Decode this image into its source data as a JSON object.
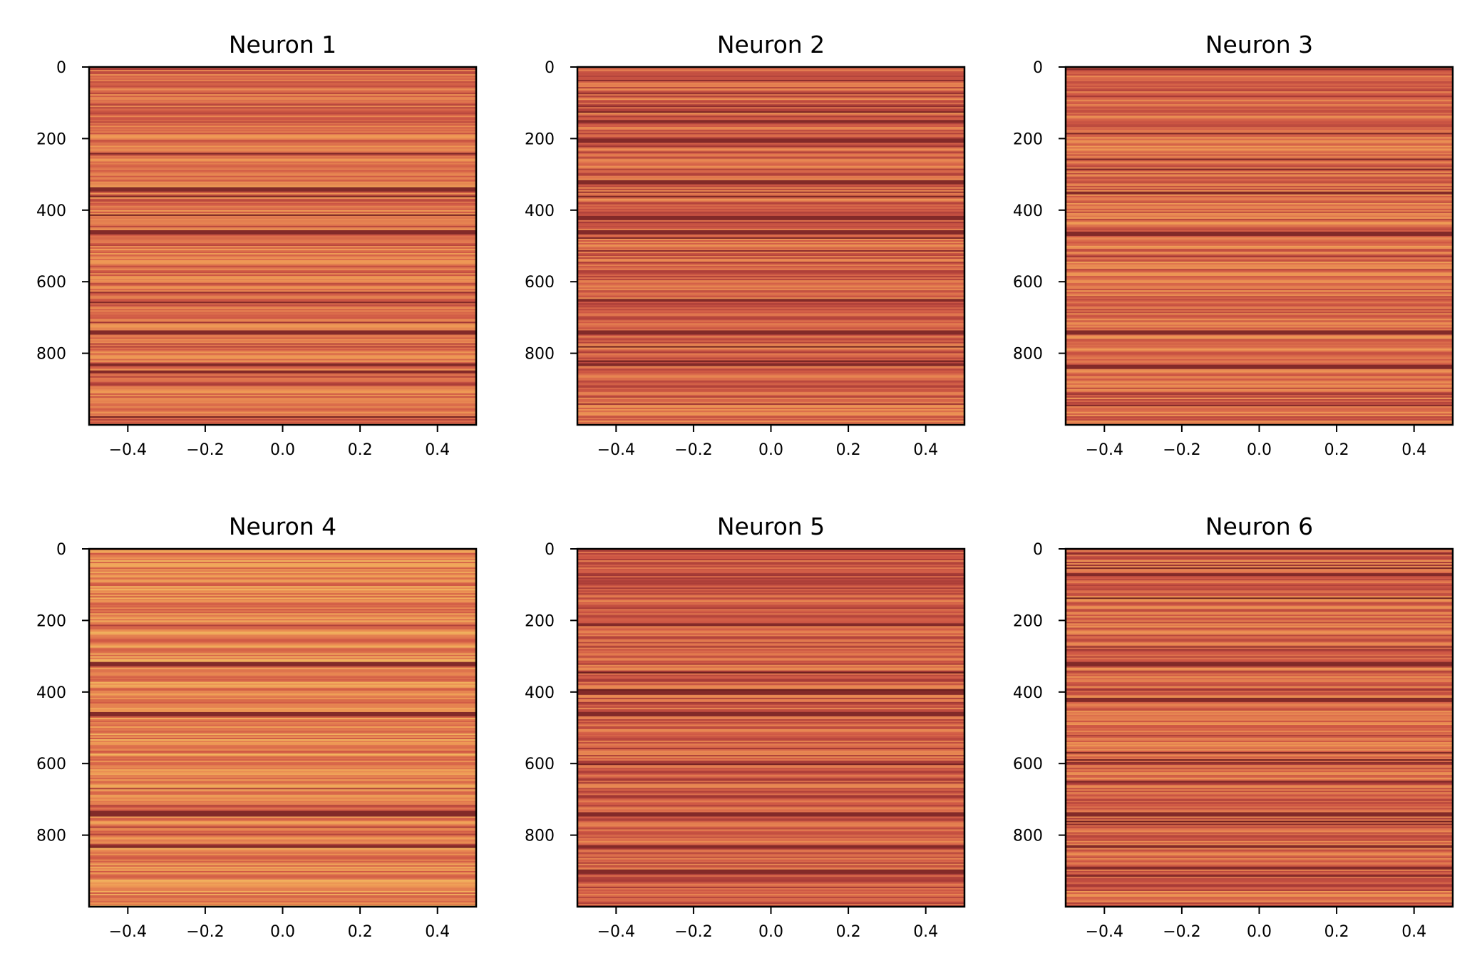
{
  "chart_data": [
    {
      "type": "heatmap",
      "title": "Neuron 1",
      "xlim": [
        -0.5,
        0.5
      ],
      "ylim": [
        1000,
        0
      ],
      "xticks": [
        "−0.4",
        "−0.2",
        "0.0",
        "0.2",
        "0.4"
      ],
      "yticks": [
        "0",
        "200",
        "400",
        "600",
        "800"
      ],
      "rows": 1000,
      "colormap": "warm (yellow-orange-red-dark red)",
      "seed": 11,
      "bias": 0.0,
      "dark_rows": [
        340,
        460,
        740,
        830,
        850
      ]
    },
    {
      "type": "heatmap",
      "title": "Neuron 2",
      "xlim": [
        -0.5,
        0.5
      ],
      "ylim": [
        1000,
        0
      ],
      "xticks": [
        "−0.4",
        "−0.2",
        "0.0",
        "0.2",
        "0.4"
      ],
      "yticks": [
        "0",
        "200",
        "400",
        "600",
        "800"
      ],
      "rows": 1000,
      "colormap": "warm (yellow-orange-red-dark red)",
      "seed": 23,
      "bias": -0.05,
      "dark_rows": [
        150,
        205,
        320,
        420,
        460,
        650,
        740,
        830
      ]
    },
    {
      "type": "heatmap",
      "title": "Neuron 3",
      "xlim": [
        -0.5,
        0.5
      ],
      "ylim": [
        1000,
        0
      ],
      "xticks": [
        "−0.4",
        "−0.2",
        "0.0",
        "0.2",
        "0.4"
      ],
      "yticks": [
        "0",
        "200",
        "400",
        "600",
        "800"
      ],
      "rows": 1000,
      "colormap": "warm (yellow-orange-red-dark red)",
      "seed": 37,
      "bias": 0.0,
      "dark_rows": [
        350,
        465,
        740,
        835
      ]
    },
    {
      "type": "heatmap",
      "title": "Neuron 4",
      "xlim": [
        -0.5,
        0.5
      ],
      "ylim": [
        1000,
        0
      ],
      "xticks": [
        "−0.4",
        "−0.2",
        "0.0",
        "0.2",
        "0.4"
      ],
      "yticks": [
        "0",
        "200",
        "400",
        "600",
        "800"
      ],
      "rows": 1000,
      "colormap": "warm (yellow-orange-red-dark red)",
      "seed": 41,
      "bias": 0.12,
      "dark_rows": [
        320,
        460,
        735,
        740,
        830
      ]
    },
    {
      "type": "heatmap",
      "title": "Neuron 5",
      "xlim": [
        -0.5,
        0.5
      ],
      "ylim": [
        1000,
        0
      ],
      "xticks": [
        "−0.4",
        "−0.2",
        "0.0",
        "0.2",
        "0.4"
      ],
      "yticks": [
        "0",
        "200",
        "400",
        "600",
        "800"
      ],
      "rows": 1000,
      "colormap": "warm (yellow-orange-red-dark red)",
      "seed": 53,
      "bias": -0.1,
      "dark_rows": [
        210,
        400,
        460,
        740,
        830,
        900
      ]
    },
    {
      "type": "heatmap",
      "title": "Neuron 6",
      "xlim": [
        -0.5,
        0.5
      ],
      "ylim": [
        1000,
        0
      ],
      "xticks": [
        "−0.4",
        "−0.2",
        "0.0",
        "0.2",
        "0.4"
      ],
      "yticks": [
        "0",
        "200",
        "400",
        "600",
        "800"
      ],
      "rows": 1000,
      "colormap": "warm (yellow-orange-red-dark red)",
      "seed": 67,
      "bias": -0.03,
      "dark_rows": [
        70,
        320,
        420,
        740,
        830,
        890
      ]
    }
  ],
  "colors": {
    "background": "#ffffff",
    "axis": "#000000",
    "cmap_stops": [
      "#6b1f1f",
      "#a63a37",
      "#cf5845",
      "#e27a4f",
      "#ee9955",
      "#f3bf63"
    ]
  }
}
